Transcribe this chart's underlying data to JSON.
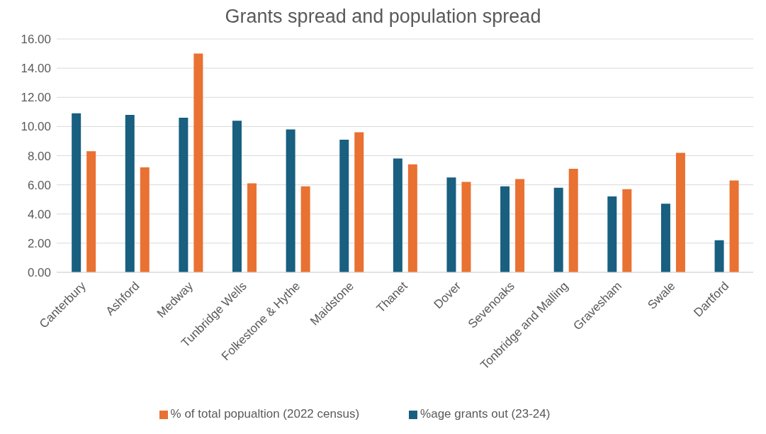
{
  "chart_data": {
    "type": "bar",
    "title": "Grants spread and population spread",
    "categories": [
      "Canterbury",
      "Ashford",
      "Medway",
      "Tunbridge Wells",
      "Folkestone & Hythe",
      "Maidstone",
      "Thanet",
      "Dover",
      "Sevenoaks",
      "Tonbridge and Malling",
      "Gravesham",
      "Swale",
      "Dartford"
    ],
    "series": [
      {
        "name": "%age grants out (23-24)",
        "color": "#185f80",
        "values": [
          10.9,
          10.8,
          10.6,
          10.4,
          9.8,
          9.1,
          7.8,
          6.5,
          5.9,
          5.8,
          5.2,
          4.7,
          2.2
        ]
      },
      {
        "name": "% of total popualtion (2022 census)",
        "color": "#e97132",
        "values": [
          8.3,
          7.2,
          15.0,
          6.1,
          5.9,
          9.6,
          7.4,
          6.2,
          6.4,
          7.1,
          5.7,
          8.2,
          6.3
        ]
      }
    ],
    "ylim": [
      0,
      16
    ],
    "yticks": [
      {
        "value": 0,
        "label": "0.00"
      },
      {
        "value": 2,
        "label": "2.00"
      },
      {
        "value": 4,
        "label": "4.00"
      },
      {
        "value": 6,
        "label": "6.00"
      },
      {
        "value": 8,
        "label": "8.00"
      },
      {
        "value": 10,
        "label": "10.00"
      },
      {
        "value": 12,
        "label": "12.00"
      },
      {
        "value": 14,
        "label": "14.00"
      },
      {
        "value": 16,
        "label": "16.00"
      }
    ],
    "grid": "y",
    "legend": "bottom"
  }
}
